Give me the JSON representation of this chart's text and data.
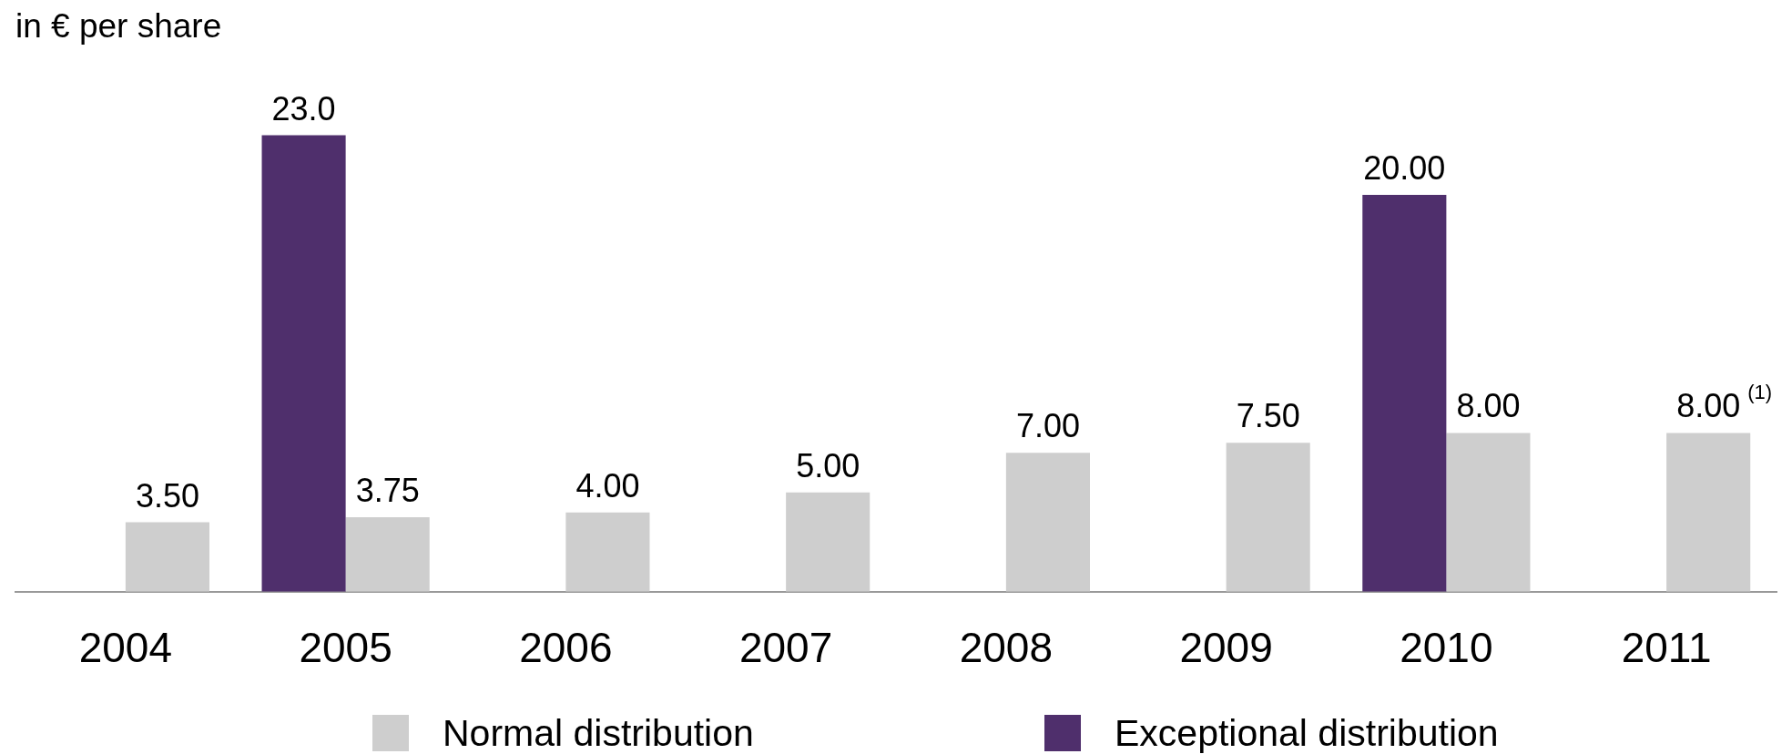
{
  "chart_data": {
    "type": "bar",
    "ylabel": "in € per share",
    "categories": [
      "2004",
      "2005",
      "2006",
      "2007",
      "2008",
      "2009",
      "2010",
      "2011"
    ],
    "series": [
      {
        "name": "Normal distribution",
        "color": "#cecece",
        "values": [
          3.5,
          3.75,
          4,
          5,
          7,
          7.5,
          8,
          8
        ],
        "value_labels": [
          "3.50",
          "3.75",
          "4.00",
          "5.00",
          "7.00",
          "7.50",
          "8.00",
          "8.00$^{(1)}$"
        ]
      },
      {
        "name": "Exceptional distribution",
        "color": "#4f2f6c",
        "values": [
          null,
          23,
          null,
          null,
          null,
          null,
          20,
          null
        ],
        "value_labels": [
          null,
          "23.0",
          null,
          null,
          null,
          null,
          "20.00",
          null
        ]
      }
    ],
    "legend": "bottom",
    "grid": false
  }
}
